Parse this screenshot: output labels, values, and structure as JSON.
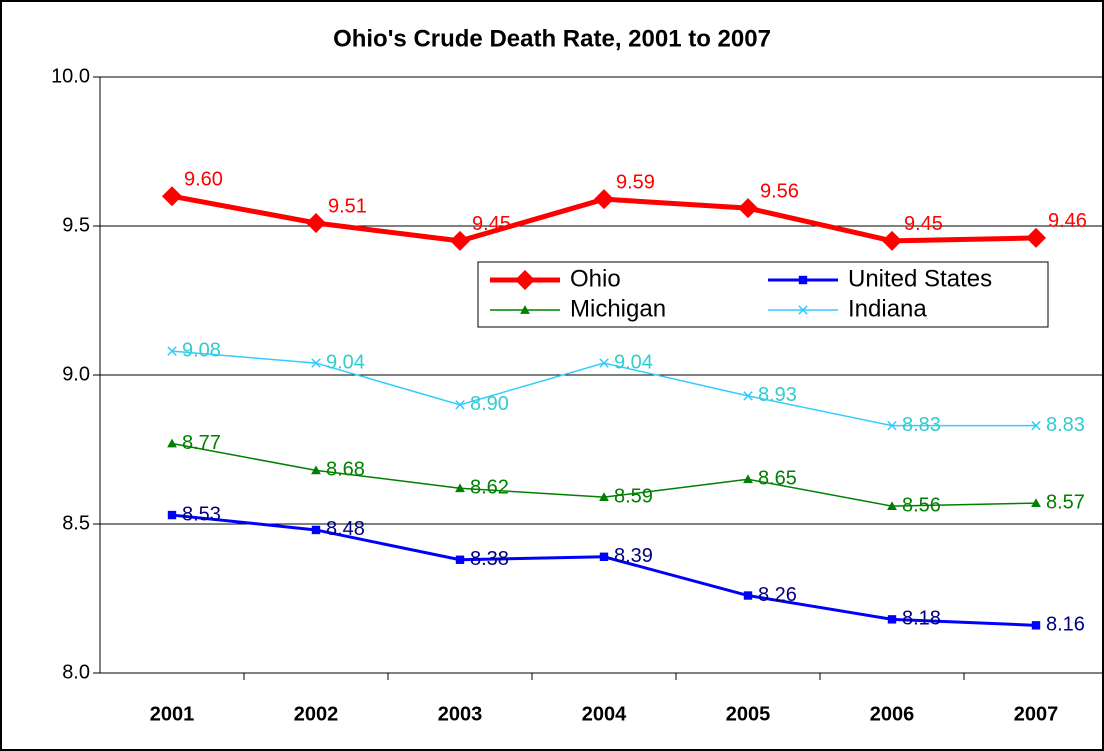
{
  "chart_data": {
    "type": "line",
    "title": "Ohio's Crude Death Rate, 2001 to 2007",
    "categories": [
      "2001",
      "2002",
      "2003",
      "2004",
      "2005",
      "2006",
      "2007"
    ],
    "series": [
      {
        "name": "Ohio",
        "color": "#ff0000",
        "label_color": "#ff0000",
        "marker": "diamond",
        "values": [
          9.6,
          9.51,
          9.45,
          9.59,
          9.56,
          9.45,
          9.46
        ],
        "value_labels": [
          "9.60",
          "9.51",
          "9.45",
          "9.59",
          "9.56",
          "9.45",
          "9.46"
        ]
      },
      {
        "name": "United States",
        "color": "#0000ff",
        "label_color": "#000080",
        "marker": "square",
        "values": [
          8.53,
          8.48,
          8.38,
          8.39,
          8.26,
          8.18,
          8.16
        ],
        "value_labels": [
          "8.53",
          "8.48",
          "8.38",
          "8.39",
          "8.26",
          "8.18",
          "8.16"
        ]
      },
      {
        "name": "Michigan",
        "color": "#008000",
        "label_color": "#008000",
        "marker": "triangle",
        "values": [
          8.77,
          8.68,
          8.62,
          8.59,
          8.65,
          8.56,
          8.57
        ],
        "value_labels": [
          "8.77",
          "8.68",
          "8.62",
          "8.59",
          "8.65",
          "8.56",
          "8.57"
        ]
      },
      {
        "name": "Indiana",
        "color": "#33ccff",
        "label_color": "#33cccc",
        "marker": "x",
        "values": [
          9.08,
          9.04,
          8.9,
          9.04,
          8.93,
          8.83,
          8.83
        ],
        "value_labels": [
          "9.08",
          "9.04",
          "8.90",
          "9.04",
          "8.93",
          "8.83",
          "8.83"
        ]
      }
    ],
    "ylim": [
      8,
      10
    ],
    "yticks": [
      {
        "value": 8,
        "label": "8.0"
      },
      {
        "value": 8.5,
        "label": "8.5"
      },
      {
        "value": 9,
        "label": "9.0"
      },
      {
        "value": 9.5,
        "label": "9.5"
      },
      {
        "value": 10,
        "label": "10.0"
      }
    ],
    "grid": true
  }
}
